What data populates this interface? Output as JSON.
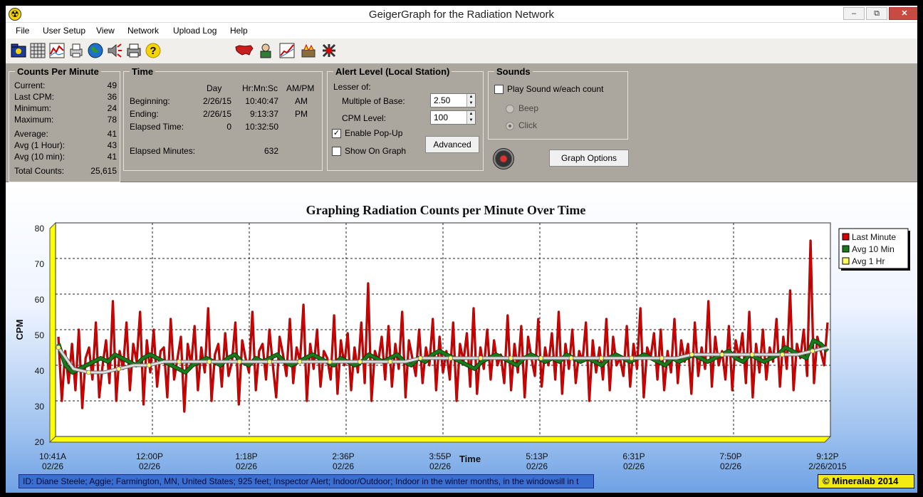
{
  "window": {
    "title": "GeigerGraph for the Radiation Network",
    "min_label": "–",
    "max_label": "⧉",
    "close_label": "✕"
  },
  "menu": [
    "File",
    "User Setup",
    "View",
    "Network",
    "Upload Log",
    "Help"
  ],
  "toolbar_icons": [
    "open-folder-icon",
    "grid-icon",
    "chart-icon",
    "printer-setup-icon",
    "globe-icon",
    "speaker-icon",
    "print-icon",
    "help-icon",
    "usa-map-icon",
    "user-icon",
    "trend-chart-icon",
    "network-icon",
    "radiation-icon"
  ],
  "cpm": {
    "title": "Counts Per Minute",
    "rows": [
      {
        "label": "Current:",
        "value": "49"
      },
      {
        "label": "Last CPM:",
        "value": "36"
      },
      {
        "label": "Minimum:",
        "value": "24"
      },
      {
        "label": "Maximum:",
        "value": "78"
      },
      {
        "label": "Average:",
        "value": "41"
      },
      {
        "label": "Avg (1 Hour):",
        "value": "43"
      },
      {
        "label": "Avg (10 min):",
        "value": "41"
      },
      {
        "label": "Total Counts:",
        "value": "25,615"
      }
    ]
  },
  "time": {
    "title": "Time",
    "headers": {
      "day": "Day",
      "hms": "Hr:Mn:Sc",
      "ampm": "AM/PM"
    },
    "beginning": {
      "label": "Beginning:",
      "day": "2/26/15",
      "hms": "10:40:47",
      "ampm": "AM"
    },
    "ending": {
      "label": "Ending:",
      "day": "2/26/15",
      "hms": "9:13:37",
      "ampm": "PM"
    },
    "elapsed": {
      "label": "Elapsed Time:",
      "day": "0",
      "hms": "10:32:50"
    },
    "elapsed_minutes": {
      "label": "Elapsed Minutes:",
      "value": "632"
    }
  },
  "alert": {
    "title": "Alert Level (Local Station)",
    "lesser_of": "Lesser of:",
    "multiple_label": "Multiple of Base:",
    "multiple_value": "2.50",
    "cpm_label": "CPM Level:",
    "cpm_value": "100",
    "popup_label": "Enable Pop-Up",
    "popup_checked": true,
    "show_graph_label": "Show On Graph",
    "show_graph_checked": false,
    "advanced_label": "Advanced"
  },
  "sounds": {
    "title": "Sounds",
    "play_label": "Play Sound w/each count",
    "play_checked": false,
    "beep_label": "Beep",
    "click_label": "Click",
    "selected": "Click",
    "graph_options_label": "Graph Options"
  },
  "footer": {
    "id_text": "ID: Diane Steele; Aggie; Farmington, MN, United States; 925 feet; Inspector Alert; Indoor/Outdoor; Indoor in the winter months, in the windowsill in t",
    "copyright": "© Mineralab 2014"
  },
  "chart_data": {
    "type": "line",
    "title": "Graphing Radiation Counts per Minute Over Time",
    "xlabel": "Time",
    "ylabel": "CPM",
    "ylim": [
      20,
      80
    ],
    "yticks": [
      20,
      30,
      40,
      50,
      60,
      70,
      80
    ],
    "xticks": [
      {
        "time": "10:41A",
        "date": "02/26"
      },
      {
        "time": "12:00P",
        "date": "02/26"
      },
      {
        "time": "1:18P",
        "date": "02/26"
      },
      {
        "time": "2:36P",
        "date": "02/26"
      },
      {
        "time": "3:55P",
        "date": "02/26"
      },
      {
        "time": "5:13P",
        "date": "02/26"
      },
      {
        "time": "6:31P",
        "date": "02/26"
      },
      {
        "time": "7:50P",
        "date": "02/26"
      },
      {
        "time": "9:12P",
        "date": "2/26/2015"
      }
    ],
    "grid": true,
    "legend": "top-right",
    "colors": {
      "last_minute": "#d40000",
      "avg10": "#1a7a1a",
      "avg1hr": "#ffff66",
      "plot_bg": "#ffffff",
      "axis_wall": "#ffff00"
    },
    "series": [
      {
        "name": "Last Minute",
        "values": [
          48,
          30,
          44,
          35,
          46,
          33,
          50,
          28,
          42,
          45,
          36,
          52,
          31,
          40,
          47,
          35,
          58,
          30,
          44,
          39,
          52,
          33,
          46,
          41,
          55,
          29,
          47,
          38,
          50,
          34,
          44,
          45,
          31,
          53,
          36,
          42,
          48,
          27,
          46,
          40,
          51,
          33,
          45,
          38,
          56,
          30,
          43,
          46,
          34,
          49,
          37,
          41,
          52,
          29,
          47,
          42,
          38,
          55,
          33,
          44,
          46,
          36,
          50,
          40,
          31,
          48,
          43,
          37,
          53,
          35,
          45,
          41,
          57,
          30,
          46,
          39,
          50,
          34,
          44,
          42,
          36,
          54,
          32,
          47,
          40,
          49,
          33,
          45,
          38,
          52,
          35,
          63,
          30,
          44,
          41,
          48,
          36,
          51,
          34,
          46,
          39,
          55,
          31,
          47,
          42,
          37,
          50,
          35,
          45,
          40,
          53,
          33,
          48,
          38,
          44,
          36,
          52,
          30,
          46,
          41,
          49,
          34,
          56,
          32,
          45,
          39,
          50,
          36,
          47,
          40,
          43,
          35,
          54,
          33,
          46,
          38,
          51,
          31,
          48,
          42,
          37,
          53,
          34,
          45,
          40,
          49,
          36,
          55,
          32,
          46,
          39,
          50,
          35,
          44,
          41,
          52,
          30,
          47,
          38,
          45,
          36,
          53,
          33,
          48,
          40,
          42,
          37,
          51,
          34,
          46,
          39,
          56,
          31,
          45,
          42,
          49,
          36,
          50,
          33,
          44,
          38,
          53,
          35,
          47,
          41,
          46,
          32,
          52,
          37,
          45,
          39,
          58,
          34,
          48,
          40,
          44,
          36,
          51,
          33,
          47,
          42,
          49,
          35,
          55,
          31,
          46,
          38,
          50,
          36,
          45,
          41,
          53,
          34,
          48,
          39,
          61,
          33,
          46,
          42,
          50,
          37,
          75,
          35,
          48,
          44,
          40,
          52
        ]
      },
      {
        "name": "Avg 10 Min",
        "values": [
          46,
          40,
          38,
          39,
          40,
          41,
          42,
          41,
          43,
          42,
          41,
          40,
          42,
          43,
          42,
          41,
          40,
          39,
          38,
          40,
          41,
          42,
          41,
          40,
          42,
          43,
          41,
          40,
          42,
          41,
          42,
          43,
          41,
          40,
          41,
          42,
          43,
          42,
          41,
          40,
          42,
          41,
          40,
          41,
          43,
          42,
          41,
          42,
          43,
          41,
          40,
          42,
          41,
          43,
          44,
          43,
          42,
          41,
          40,
          39,
          41,
          42,
          43,
          42,
          41,
          40,
          42,
          43,
          42,
          41,
          42,
          41,
          43,
          42,
          41,
          42,
          41,
          40,
          42,
          43,
          42,
          41,
          42,
          43,
          42,
          41,
          40,
          42,
          41,
          42,
          43,
          42,
          41,
          42,
          43,
          44,
          42,
          41,
          43,
          42,
          41,
          42,
          43,
          45,
          44,
          43,
          42,
          47,
          46,
          44
        ]
      },
      {
        "name": "Avg 1 Hr",
        "values": [
          45,
          39,
          38,
          38,
          39,
          40,
          40,
          41,
          41,
          41,
          41,
          41,
          41,
          41,
          41,
          41,
          41,
          41,
          41,
          41,
          41,
          41,
          41,
          41,
          42,
          42,
          42,
          42,
          42,
          42,
          42,
          42,
          42,
          42,
          42,
          42,
          42,
          42,
          42,
          42,
          42,
          42,
          43,
          43,
          43,
          43,
          43,
          43,
          43,
          43,
          44,
          45
        ]
      }
    ]
  }
}
